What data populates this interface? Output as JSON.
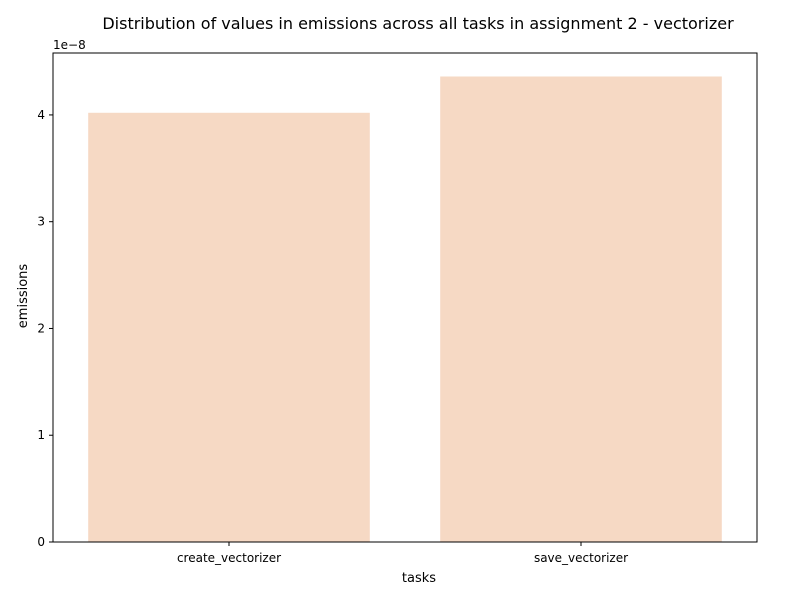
{
  "chart_data": {
    "type": "bar",
    "title": "Distribution of values in emissions across all tasks in assignment 2 - vectorizer",
    "xlabel": "tasks",
    "ylabel": "emissions",
    "categories": [
      "create_vectorizer",
      "save_vectorizer"
    ],
    "values": [
      4.02e-08,
      4.36e-08
    ],
    "ylim": [
      0,
      4.58e-08
    ],
    "y_ticks": [
      0,
      1e-08,
      2e-08,
      3e-08,
      4e-08
    ],
    "y_tick_labels": [
      "0",
      "1",
      "2",
      "3",
      "4"
    ],
    "y_offset_label": "1e−8",
    "bar_color": "#f6d9c4",
    "grid": false,
    "legend": "none"
  }
}
